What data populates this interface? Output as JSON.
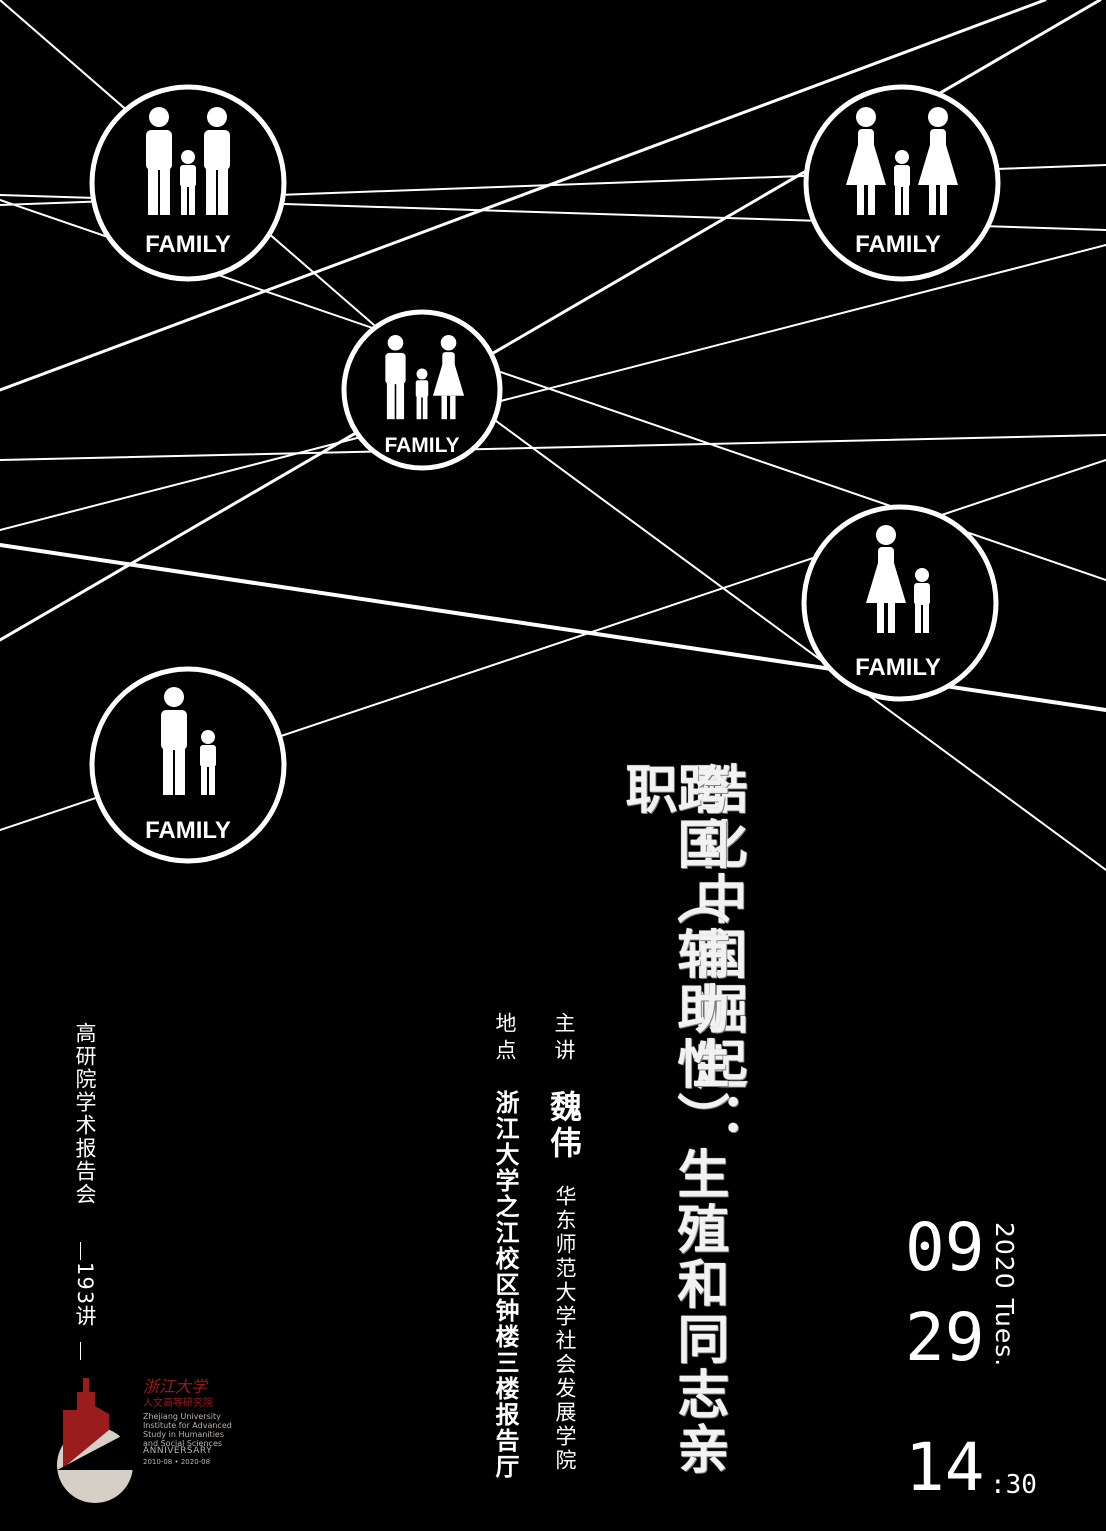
{
  "colors": {
    "background": "#000000",
    "foreground": "#ffffff",
    "logo_red": "#9a1c1c",
    "logo_beige": "#d6cfc6"
  },
  "nodes": [
    {
      "label": "FAMILY",
      "icon": "two-fathers-child-icon"
    },
    {
      "label": "FAMILY",
      "icon": "two-mothers-child-icon"
    },
    {
      "label": "FAMILY",
      "icon": "father-mother-child-icon"
    },
    {
      "label": "FAMILY",
      "icon": "mother-child-icon"
    },
    {
      "label": "FAMILY",
      "icon": "father-child-icon"
    }
  ],
  "title": {
    "line1": "酷化中国崛起：",
    "line2": "跨国（辅助性）生殖和同志亲职"
  },
  "speaker": {
    "label": "主讲",
    "name": "魏伟",
    "affiliation": "华东师范大学社会发展学院"
  },
  "venue": {
    "label": "地点",
    "place": "浙江大学之江校区钟楼三楼报告厅"
  },
  "series": {
    "name": "高研院学术报告会",
    "number": "193讲"
  },
  "date": {
    "month": "09",
    "day": "29",
    "year_weekday": "2020 Tues.",
    "hour": "14",
    "minute": ":30"
  },
  "logo": {
    "name_cn": "浙江大学",
    "institute_cn": "人文高等研究院",
    "name_en": "Zhejiang University Institute for Advanced Study in Humanities and Social Sciences",
    "anniversary": "ANNIVERSARY",
    "years": "2010-08 • 2020-08"
  }
}
